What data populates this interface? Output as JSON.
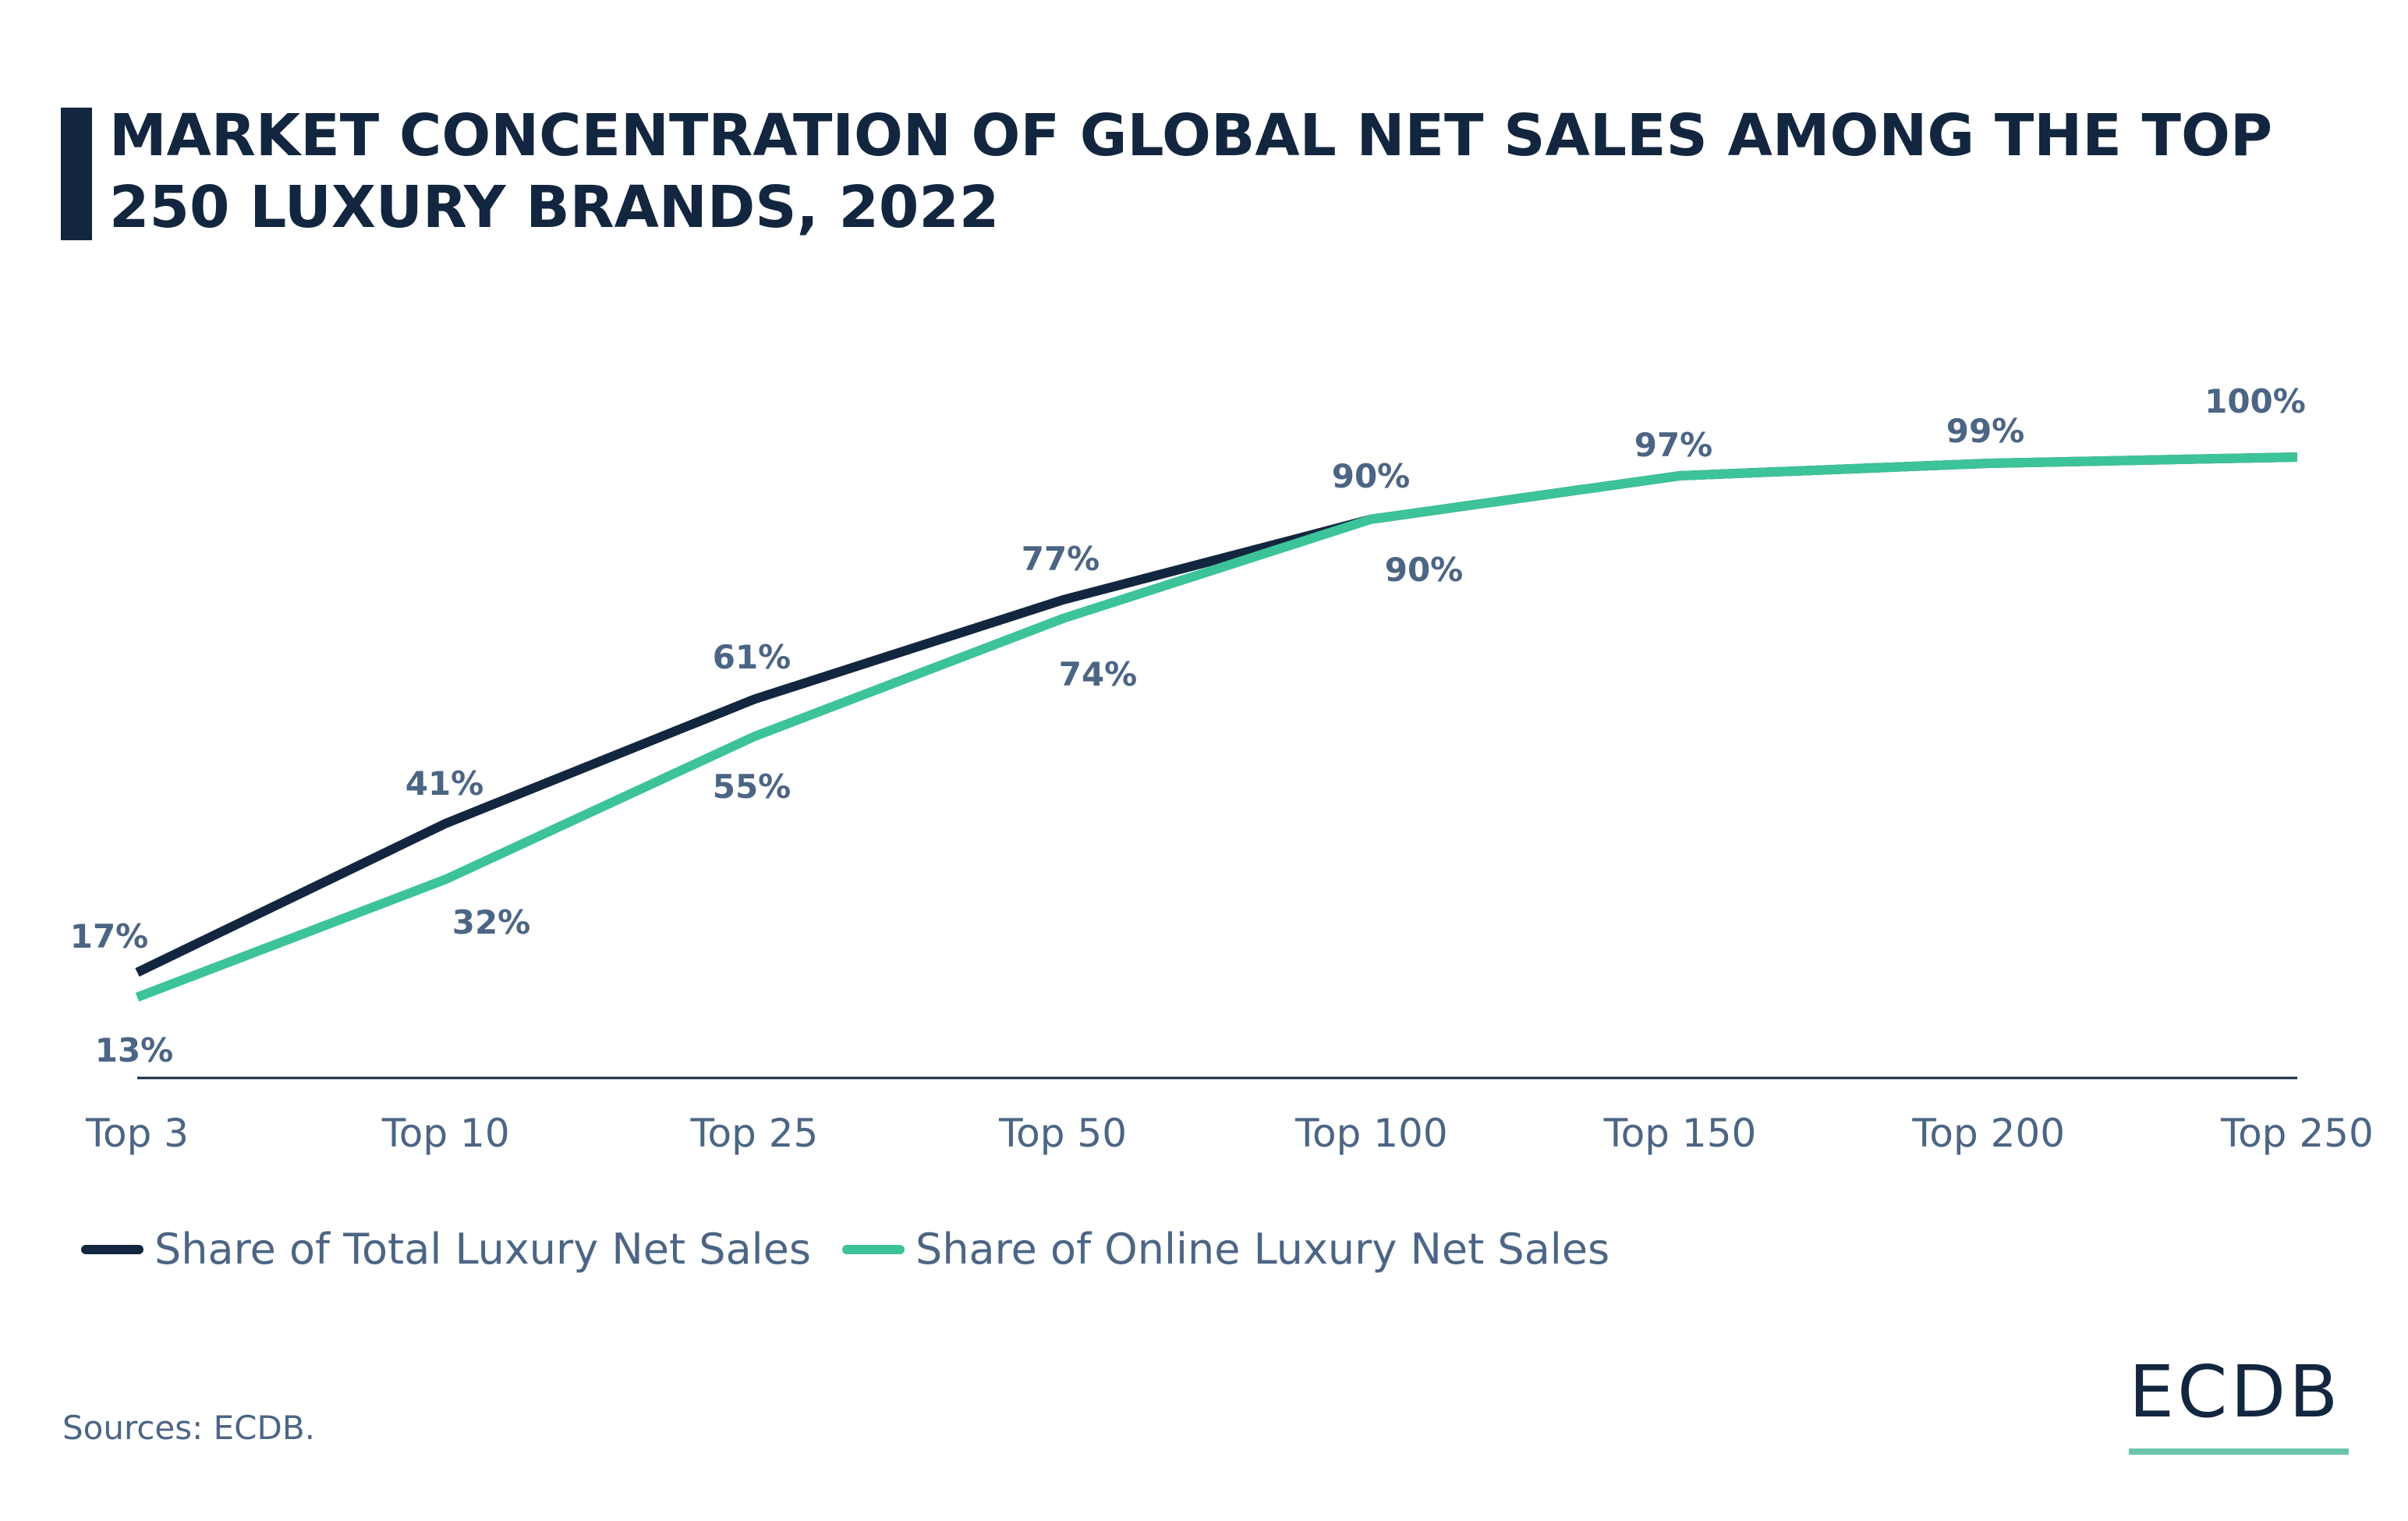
{
  "title": "MARKET CONCENTRATION OF GLOBAL NET SALES AMONG THE TOP 250 LUXURY BRANDS, 2022",
  "source": "Sources: ECDB.",
  "logo": "ECDB",
  "colors": {
    "total": "#13263f",
    "online": "#3cc39a",
    "text": "#4c6584",
    "logo_underline": "#6cc4ad"
  },
  "chart_data": {
    "type": "line",
    "categories": [
      "Top 3",
      "Top 10",
      "Top 25",
      "Top 50",
      "Top 100",
      "Top 150",
      "Top 200",
      "Top 250"
    ],
    "series": [
      {
        "name": "Share of Total Luxury Net Sales",
        "values": [
          17,
          41,
          61,
          77,
          90,
          97,
          99,
          100
        ],
        "labels": [
          "17%",
          "41%",
          "61%",
          "77%",
          "90%",
          "97%",
          "99%",
          "100%"
        ],
        "color": "#13263f"
      },
      {
        "name": "Share of Online Luxury Net Sales",
        "values": [
          13,
          32,
          55,
          74,
          90,
          97,
          99,
          100
        ],
        "labels": [
          "13%",
          "32%",
          "55%",
          "74%",
          "90%",
          "",
          "",
          ""
        ],
        "color": "#3cc39a"
      }
    ],
    "ylim": [
      0,
      100
    ],
    "unit": "%",
    "grid": false,
    "legend": "bottom-left"
  }
}
